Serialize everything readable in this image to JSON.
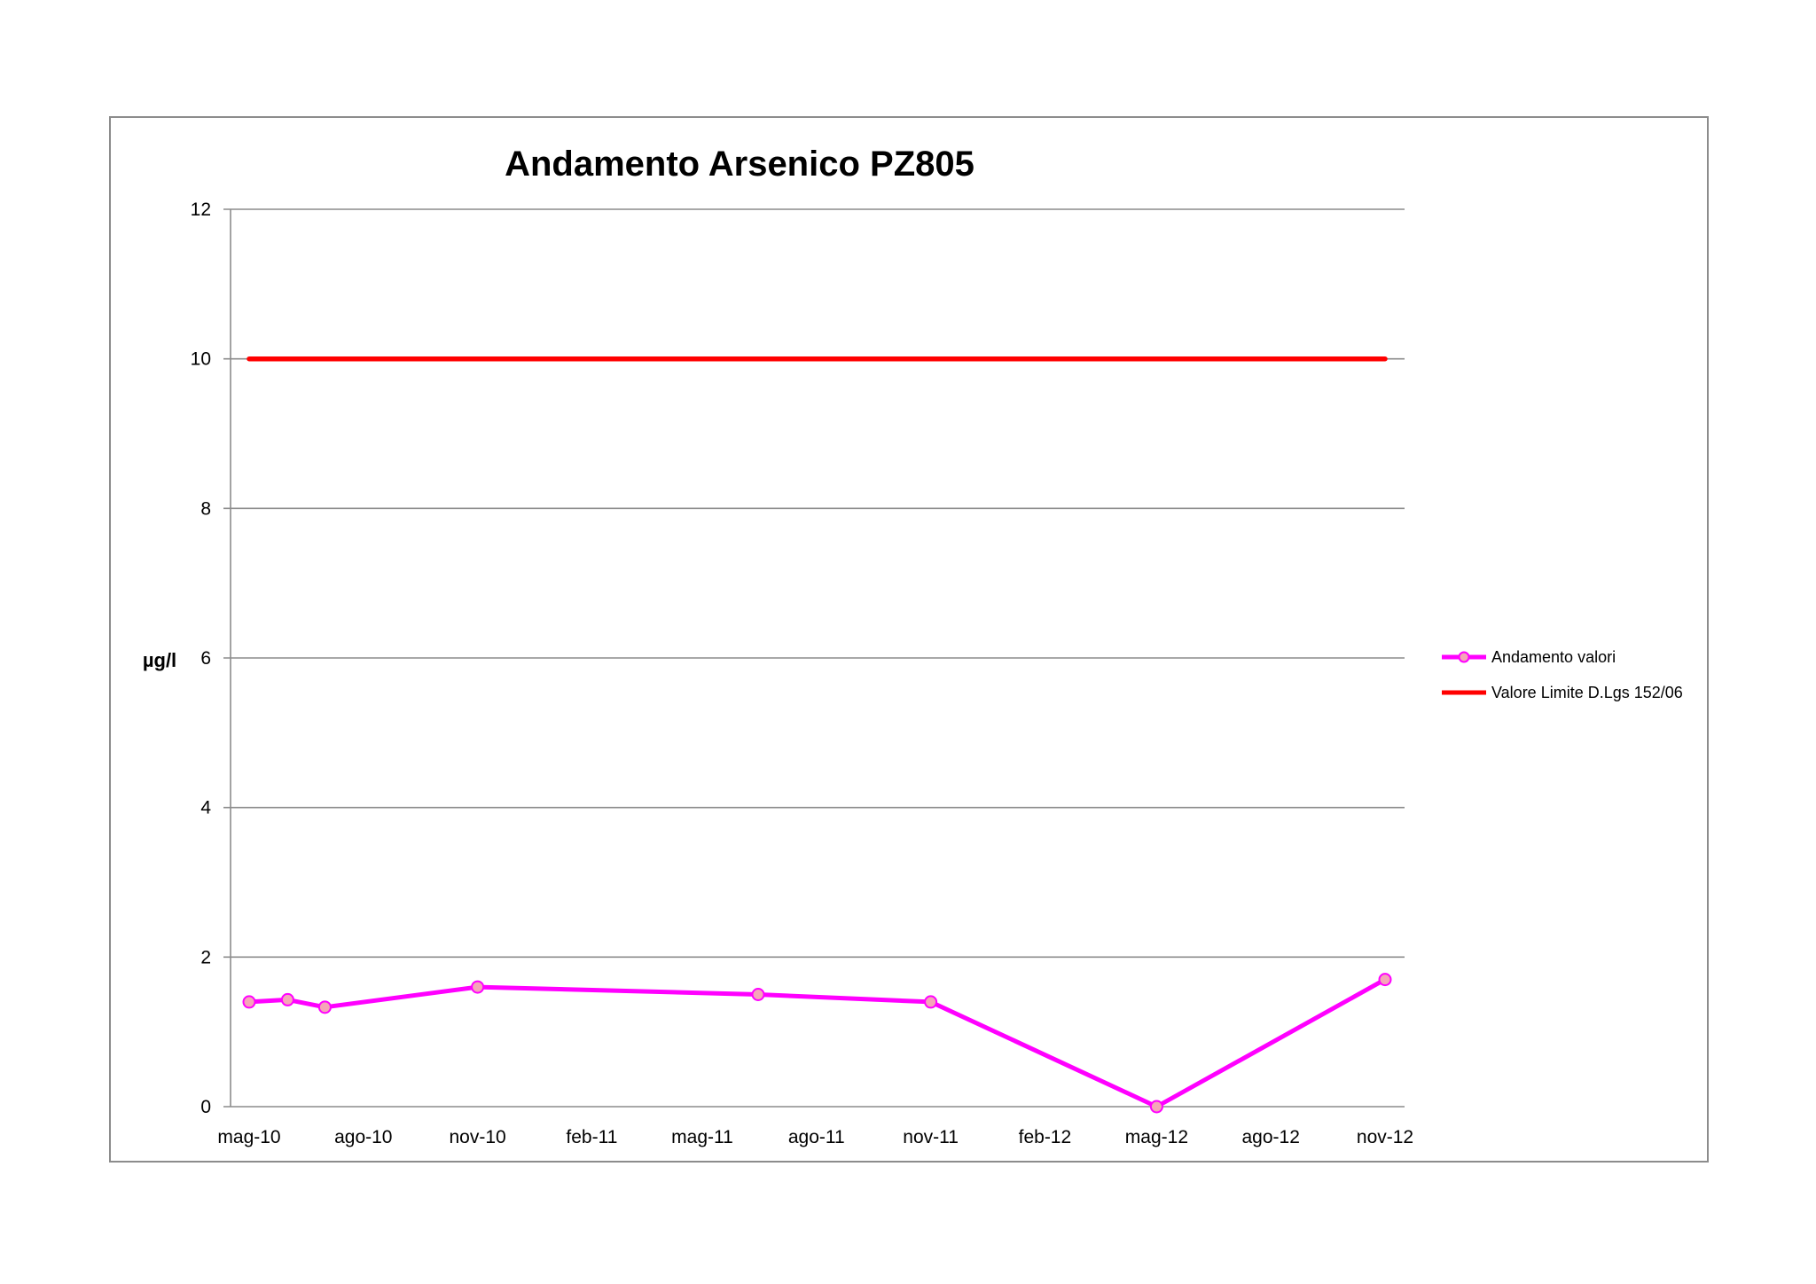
{
  "chart_data": {
    "type": "line",
    "title": "Andamento Arsenico PZ805",
    "xlabel": "",
    "ylabel": "µg/l",
    "ylim": [
      0,
      12
    ],
    "y_ticks": [
      "0",
      "2",
      "4",
      "6",
      "8",
      "10",
      "12"
    ],
    "x_range": [
      "2010-05-01",
      "2012-11-01"
    ],
    "x_ticks": [
      {
        "date": "2010-05-01",
        "label": "mag-10"
      },
      {
        "date": "2010-08-01",
        "label": "ago-10"
      },
      {
        "date": "2010-11-01",
        "label": "nov-10"
      },
      {
        "date": "2011-02-01",
        "label": "feb-11"
      },
      {
        "date": "2011-05-01",
        "label": "mag-11"
      },
      {
        "date": "2011-08-01",
        "label": "ago-11"
      },
      {
        "date": "2011-11-01",
        "label": "nov-11"
      },
      {
        "date": "2012-02-01",
        "label": "feb-12"
      },
      {
        "date": "2012-05-01",
        "label": "mag-12"
      },
      {
        "date": "2012-08-01",
        "label": "ago-12"
      },
      {
        "date": "2012-11-01",
        "label": "nov-12"
      }
    ],
    "grid": true,
    "legend_position": "right",
    "series": [
      {
        "name": "Andamento valori",
        "color": "#ff00ff",
        "marker_fill": "#f5a6b8",
        "marker": "circle",
        "x": [
          "2010-05-01",
          "2010-06-01",
          "2010-07-01",
          "2010-11-01",
          "2011-06-15",
          "2011-11-01",
          "2012-05-01",
          "2012-11-01"
        ],
        "y": [
          1.4,
          1.43,
          1.33,
          1.6,
          1.5,
          1.4,
          0,
          1.7
        ]
      },
      {
        "name": "Valore Limite D.Lgs 152/06",
        "color": "#ff0000",
        "marker": "none",
        "x": [
          "2010-05-01",
          "2012-11-01"
        ],
        "y": [
          10,
          10
        ]
      }
    ]
  }
}
